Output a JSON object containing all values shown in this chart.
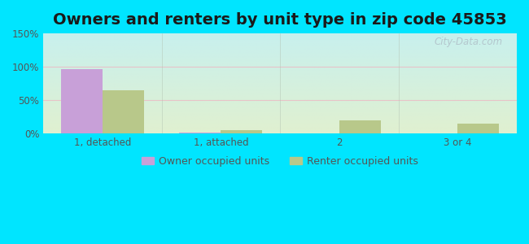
{
  "title": "Owners and renters by unit type in zip code 45853",
  "categories": [
    "1, detached",
    "1, attached",
    "2",
    "3 or 4"
  ],
  "owner_values": [
    97,
    1,
    0,
    0
  ],
  "renter_values": [
    65,
    5,
    20,
    15
  ],
  "owner_color": "#c8a0d8",
  "renter_color": "#b8c88a",
  "ylim": [
    0,
    150
  ],
  "yticks": [
    0,
    50,
    100,
    150
  ],
  "ytick_labels": [
    "0%",
    "50%",
    "100%",
    "150%"
  ],
  "bg_top": "#c8f0ee",
  "bg_bottom": "#e0f0d0",
  "outer_bg": "#00e5ff",
  "bar_width": 0.35,
  "legend_owner": "Owner occupied units",
  "legend_renter": "Renter occupied units",
  "title_fontsize": 14,
  "grid_color": "#e8e8e8",
  "tick_color": "#555555",
  "watermark": "City-Data.com"
}
